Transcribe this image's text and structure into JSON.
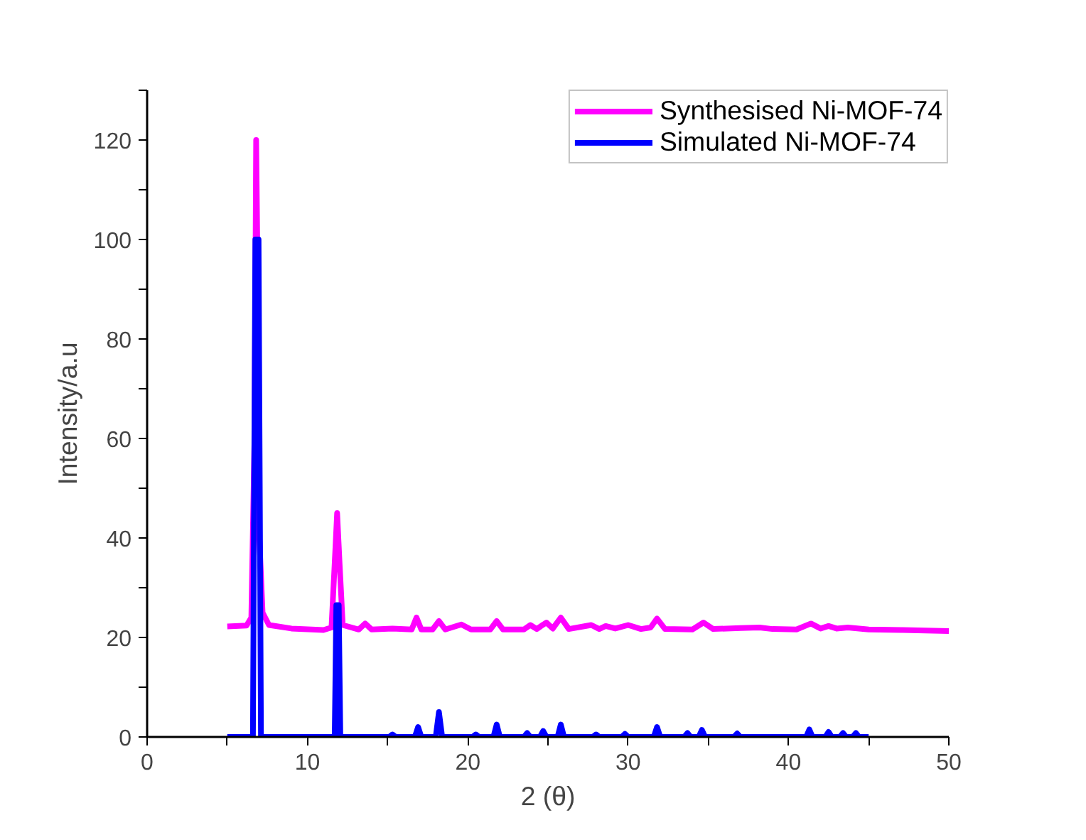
{
  "chart_data": {
    "type": "line",
    "xlabel": "2 (θ)",
    "ylabel": "Intensity/a.u",
    "xlim": [
      0,
      50
    ],
    "ylim": [
      0,
      130
    ],
    "xticks": [
      0,
      {
        "value": 5,
        "label": null
      },
      10,
      {
        "value": 15,
        "label": null
      },
      20,
      {
        "value": 25,
        "label": null
      },
      30,
      {
        "value": 35,
        "label": null
      },
      40,
      {
        "value": 45,
        "label": null
      },
      50
    ],
    "yticks": [
      0,
      {
        "value": 10,
        "label": null
      },
      20,
      {
        "value": 30,
        "label": null
      },
      40,
      {
        "value": 50,
        "label": null
      },
      60,
      {
        "value": 70,
        "label": null
      },
      80,
      {
        "value": 90,
        "label": null
      },
      100,
      {
        "value": 110,
        "label": null
      },
      120,
      {
        "value": 130,
        "label": null
      }
    ],
    "grid": false,
    "legend": "top right",
    "marker": "none",
    "line_style": "solid",
    "series": [
      {
        "name": "Synthesised Ni-MOF-74",
        "color": "#ff00ff",
        "x": [
          5,
          6.2,
          6.5,
          6.7,
          6.8,
          6.9,
          7.0,
          7.2,
          7.6,
          9,
          11,
          11.5,
          11.7,
          11.85,
          12.0,
          12.2,
          13.2,
          13.6,
          14.0,
          15.3,
          16.5,
          16.8,
          17.1,
          17.8,
          18.2,
          18.6,
          19.6,
          20.2,
          21.4,
          21.8,
          22.2,
          23.5,
          23.9,
          24.3,
          24.9,
          25.3,
          25.8,
          26.3,
          27.7,
          28.2,
          28.6,
          29.2,
          30.0,
          30.8,
          31.4,
          31.8,
          32.3,
          34.0,
          34.7,
          35.3,
          37,
          38.2,
          39,
          40.5,
          41.4,
          42,
          42.5,
          43.0,
          43.7,
          45,
          47,
          50
        ],
        "values": [
          22.2,
          22.4,
          24,
          60,
          120,
          90,
          40,
          25,
          22.5,
          21.8,
          21.5,
          22,
          35,
          45,
          35,
          22.5,
          21.6,
          22.8,
          21.6,
          21.8,
          21.6,
          24,
          21.6,
          21.6,
          23.3,
          21.6,
          22.6,
          21.6,
          21.6,
          23.3,
          21.6,
          21.6,
          22.5,
          21.7,
          23,
          21.8,
          24,
          21.7,
          22.5,
          21.7,
          22.3,
          21.8,
          22.5,
          21.7,
          22,
          23.8,
          21.7,
          21.6,
          23,
          21.7,
          21.9,
          22,
          21.7,
          21.6,
          22.8,
          21.8,
          22.3,
          21.8,
          22,
          21.6,
          21.5,
          21.3
        ]
      },
      {
        "name": "Simulated Ni-MOF-74",
        "color": "#0000ff",
        "x": [
          5,
          6.6,
          6.75,
          6.95,
          7.1,
          11.7,
          11.8,
          11.95,
          12.05,
          15.1,
          15.3,
          15.5,
          16.7,
          16.9,
          17.1,
          18.0,
          18.2,
          18.4,
          20.3,
          20.5,
          20.7,
          21.6,
          21.8,
          22.0,
          23.5,
          23.7,
          23.9,
          24.5,
          24.7,
          24.9,
          25.6,
          25.8,
          26.0,
          27.8,
          28.0,
          28.2,
          29.6,
          29.8,
          30.0,
          31.6,
          31.8,
          32.0,
          33.5,
          33.7,
          33.9,
          34.4,
          34.6,
          34.8,
          36.6,
          36.8,
          37,
          41.1,
          41.3,
          41.5,
          42.3,
          42.5,
          42.7,
          43.2,
          43.4,
          43.6,
          44.0,
          44.2,
          44.4,
          45
        ],
        "values": [
          0,
          0,
          100,
          100,
          0,
          0,
          26.5,
          26.5,
          0,
          0,
          0.5,
          0,
          0,
          2,
          0,
          0,
          5,
          0,
          0,
          0.5,
          0,
          0,
          2.5,
          0,
          0,
          0.8,
          0,
          0,
          1.2,
          0,
          0,
          2.5,
          0,
          0,
          0.5,
          0,
          0,
          0.6,
          0,
          0,
          2,
          0,
          0,
          0.8,
          0,
          0,
          1.4,
          0,
          0,
          0.7,
          0,
          0,
          1.5,
          0,
          0,
          1,
          0,
          0,
          0.8,
          0,
          0,
          0.8,
          0,
          0
        ]
      }
    ]
  }
}
